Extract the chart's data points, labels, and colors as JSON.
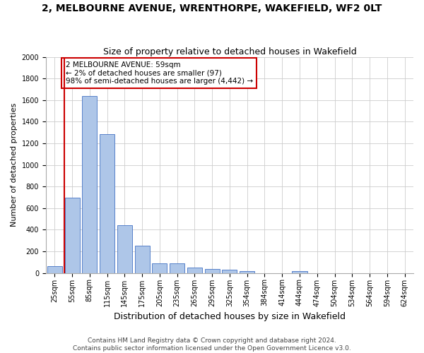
{
  "title": "2, MELBOURNE AVENUE, WRENTHORPE, WAKEFIELD, WF2 0LT",
  "subtitle": "Size of property relative to detached houses in Wakefield",
  "xlabel": "Distribution of detached houses by size in Wakefield",
  "ylabel": "Number of detached properties",
  "bar_labels": [
    "25sqm",
    "55sqm",
    "85sqm",
    "115sqm",
    "145sqm",
    "175sqm",
    "205sqm",
    "235sqm",
    "265sqm",
    "295sqm",
    "325sqm",
    "354sqm",
    "384sqm",
    "414sqm",
    "444sqm",
    "474sqm",
    "504sqm",
    "534sqm",
    "564sqm",
    "594sqm",
    "624sqm"
  ],
  "bar_values": [
    65,
    700,
    1640,
    1285,
    445,
    255,
    90,
    88,
    50,
    40,
    30,
    20,
    0,
    0,
    20,
    0,
    0,
    0,
    0,
    0,
    0
  ],
  "bar_color": "#aec6e8",
  "bar_edge_color": "#4472c4",
  "vline_color": "#cc0000",
  "annotation_text": "2 MELBOURNE AVENUE: 59sqm\n← 2% of detached houses are smaller (97)\n98% of semi-detached houses are larger (4,442) →",
  "annotation_box_color": "#cc0000",
  "ylim": [
    0,
    2000
  ],
  "yticks": [
    0,
    200,
    400,
    600,
    800,
    1000,
    1200,
    1400,
    1600,
    1800,
    2000
  ],
  "footer_line1": "Contains HM Land Registry data © Crown copyright and database right 2024.",
  "footer_line2": "Contains public sector information licensed under the Open Government Licence v3.0.",
  "title_fontsize": 10,
  "subtitle_fontsize": 9,
  "xlabel_fontsize": 9,
  "ylabel_fontsize": 8,
  "tick_fontsize": 7,
  "annotation_fontsize": 7.5,
  "footer_fontsize": 6.5,
  "background_color": "#ffffff",
  "grid_color": "#cccccc"
}
